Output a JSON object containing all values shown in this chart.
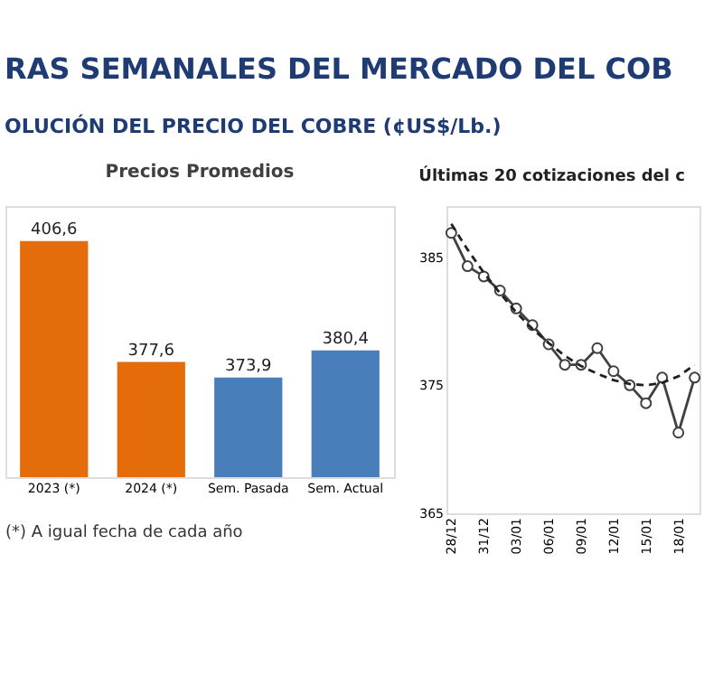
{
  "chart_data": [
    {
      "type": "other",
      "title": "RAS SEMANALES DEL MERCADO DEL COB",
      "subtitle": "OLUCIÓN DEL PRECIO DEL COBRE (¢US$/Lb.)"
    },
    {
      "type": "bar",
      "title": "Precios Promedios",
      "categories": [
        "2023 (*)",
        "2024 (*)",
        "Sem. Pasada",
        "Sem. Actual"
      ],
      "values": [
        406.6,
        377.6,
        373.9,
        380.4
      ],
      "colors": [
        "#e46c0a",
        "#e46c0a",
        "#4a7ebb",
        "#4a7ebb"
      ],
      "value_labels": [
        "406,6",
        "377,6",
        "373,9",
        "380,4"
      ],
      "ylim": [
        350,
        415
      ],
      "tick_labels": "x",
      "grid": false,
      "annotations": [
        "(*) A igual fecha de cada año"
      ]
    },
    {
      "type": "line",
      "title": "Últimas 20 cotizaciones del c",
      "categories": [
        "28/12",
        null,
        "31/12",
        null,
        "03/01",
        null,
        "06/01",
        null,
        "09/01",
        null,
        "12/01",
        null,
        "15/01",
        null,
        "18/01",
        null
      ],
      "ylim": [
        365,
        389
      ],
      "yticks": [
        365,
        375,
        385
      ],
      "grid": false,
      "series": [
        {
          "color": "#404040",
          "marker": "circle",
          "line_style": "solid",
          "values": [
            386.9,
            384.3,
            383.5,
            382.4,
            381.0,
            379.7,
            378.2,
            376.6,
            376.6,
            377.9,
            376.1,
            375.0,
            373.6,
            375.6,
            371.3,
            375.6
          ]
        },
        {
          "type": "line",
          "color": "#222222",
          "marker": "none",
          "line_style": "dashed",
          "values": [
            387.6,
            385.6,
            383.8,
            382.2,
            380.7,
            379.4,
            378.3,
            377.3,
            376.5,
            375.9,
            375.4,
            375.1,
            375.0,
            375.2,
            375.7,
            376.6
          ]
        }
      ]
    }
  ]
}
